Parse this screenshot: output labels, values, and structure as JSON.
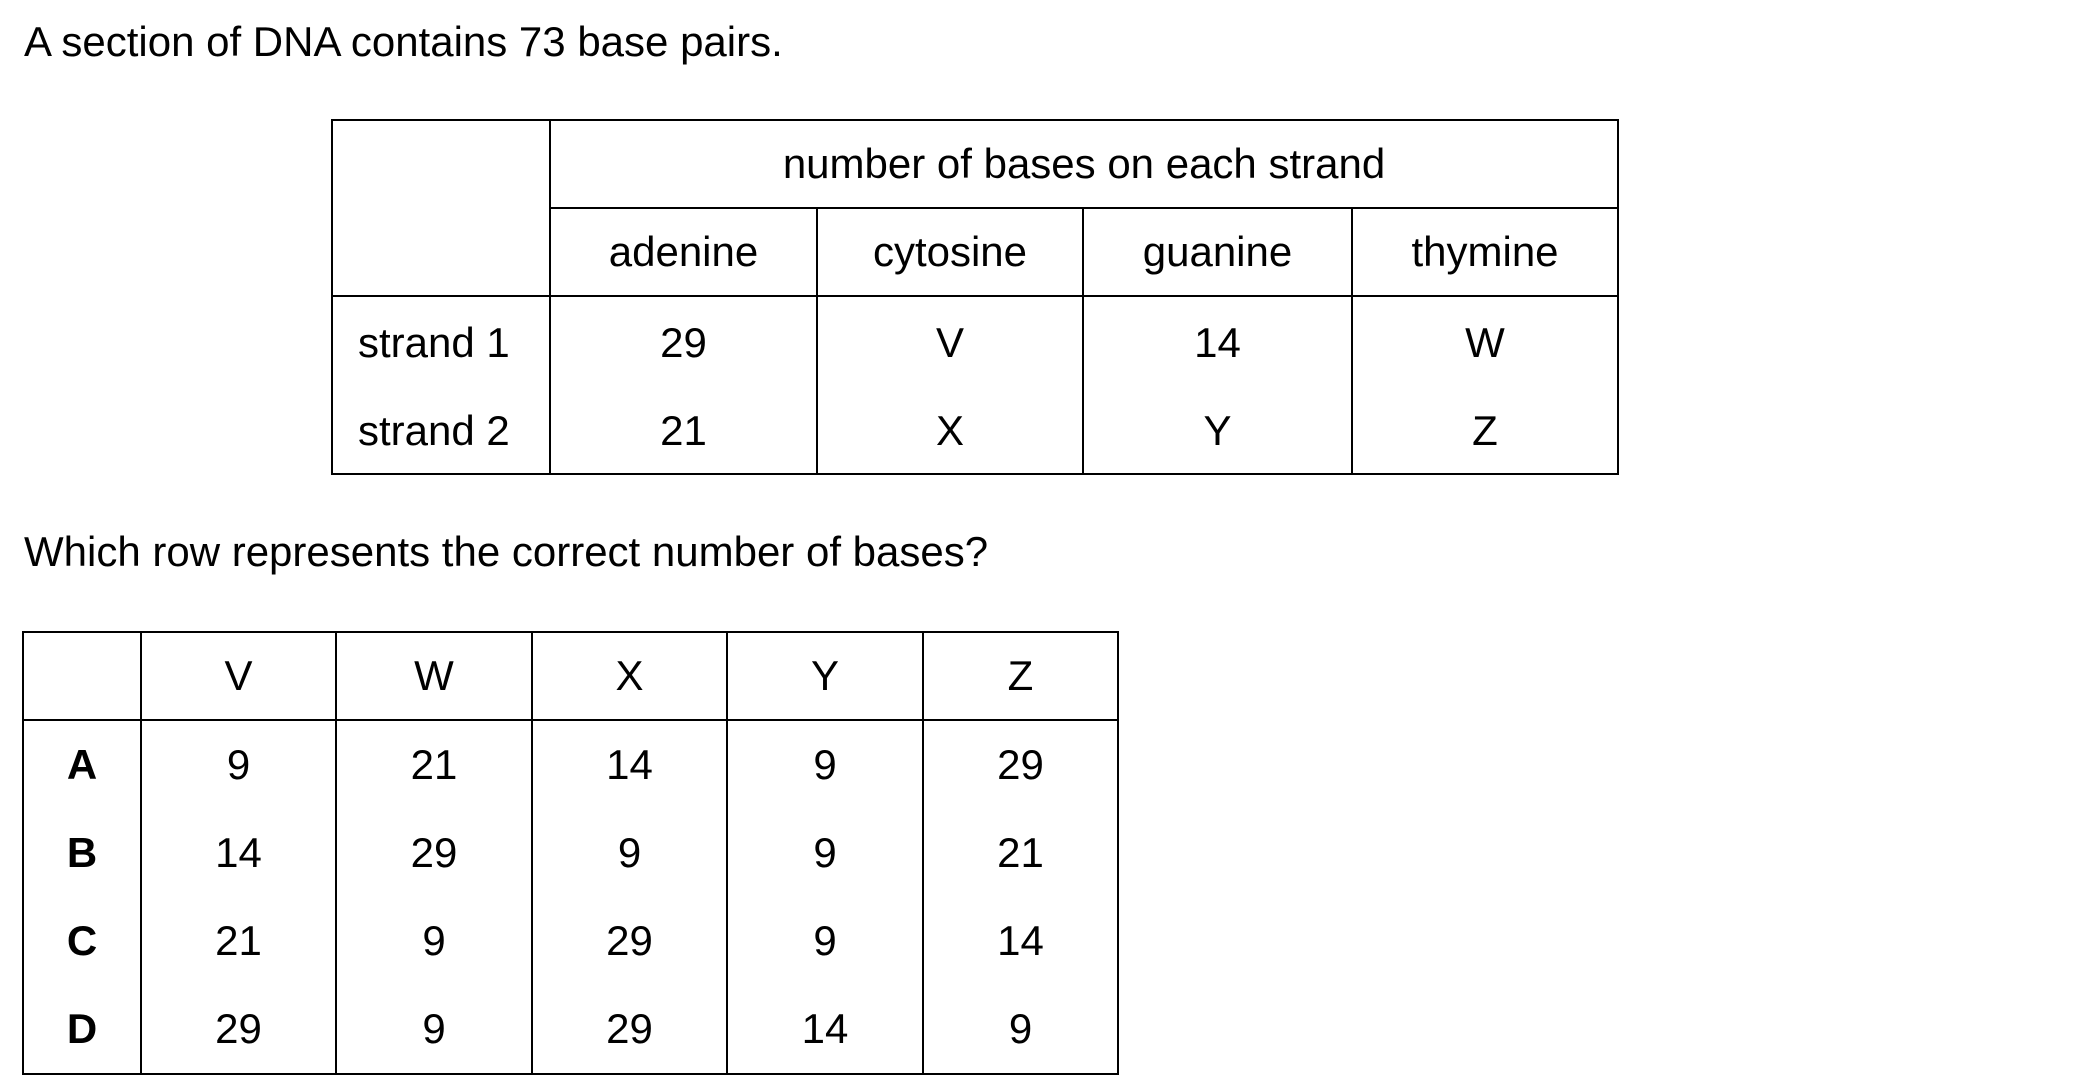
{
  "intro": "A section of DNA contains 73 base pairs.",
  "dna_table": {
    "group_header": "number of bases on each strand",
    "bases": [
      "adenine",
      "cytosine",
      "guanine",
      "thymine"
    ],
    "rows": [
      {
        "label": "strand 1",
        "values": [
          "29",
          "V",
          "14",
          "W"
        ]
      },
      {
        "label": "strand 2",
        "values": [
          "21",
          "X",
          "Y",
          "Z"
        ]
      }
    ]
  },
  "question": "Which row represents the correct number of bases?",
  "options_table": {
    "columns": [
      "V",
      "W",
      "X",
      "Y",
      "Z"
    ],
    "rows": [
      {
        "letter": "A",
        "values": [
          "9",
          "21",
          "14",
          "9",
          "29"
        ]
      },
      {
        "letter": "B",
        "values": [
          "14",
          "29",
          "9",
          "9",
          "21"
        ]
      },
      {
        "letter": "C",
        "values": [
          "21",
          "9",
          "29",
          "9",
          "14"
        ]
      },
      {
        "letter": "D",
        "values": [
          "29",
          "9",
          "29",
          "14",
          "9"
        ]
      }
    ]
  }
}
